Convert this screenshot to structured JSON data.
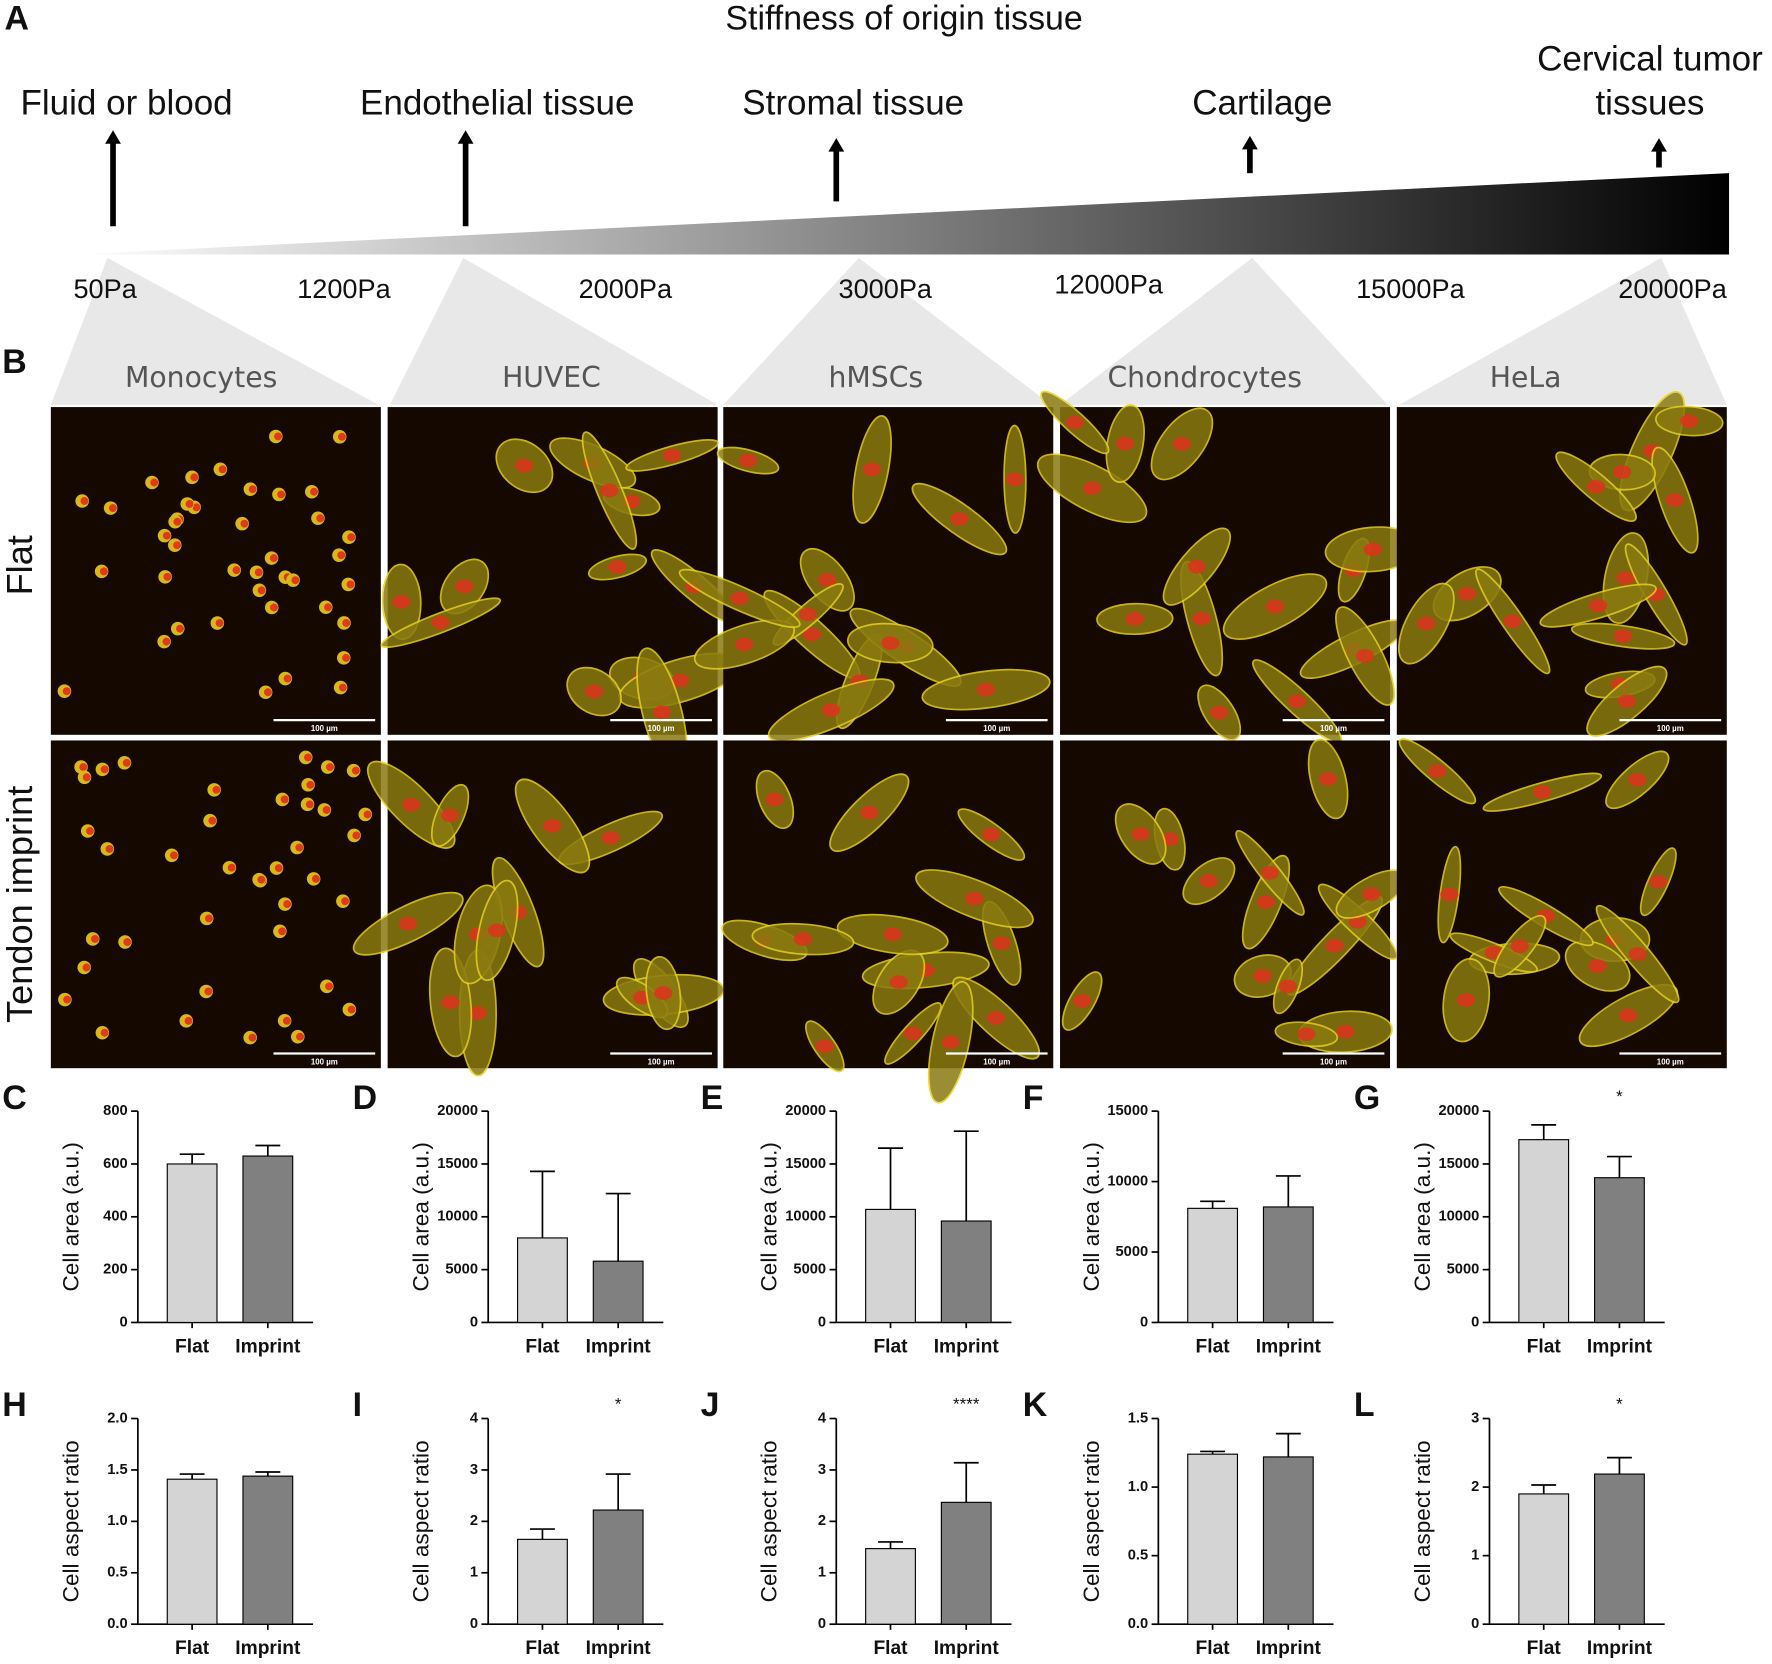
{
  "panel_a": {
    "label": "A",
    "title": "Stiffness of origin tissue",
    "tissues": [
      [
        "Fluid or blood"
      ],
      [
        "Endothelial tissue"
      ],
      [
        "Stromal tissue"
      ],
      [
        "Cartilage"
      ],
      [
        "Cervical tumor",
        "tissues"
      ]
    ],
    "stiffness": [
      "50Pa",
      "1200Pa",
      "2000Pa",
      "3000Pa",
      "12000Pa",
      "15000Pa",
      "20000Pa"
    ]
  },
  "panel_b": {
    "label": "B",
    "cell_types": [
      "Monocytes",
      "HUVEC",
      "hMSCs",
      "Chondrocytes",
      "HeLa"
    ],
    "rows": [
      "Flat",
      "Tendon imprint"
    ],
    "scale_bar": "100 µm"
  },
  "chart_data": [
    {
      "type": "bar",
      "panel": "C",
      "y_label": "Cell area (a.u.)",
      "categories": [
        "Flat",
        "Imprint"
      ],
      "values": [
        600,
        630
      ],
      "errors": [
        37,
        40
      ],
      "colors": [
        "#d4d4d4",
        "#808080"
      ],
      "ylim": [
        0,
        800
      ],
      "yticks": [
        0,
        200,
        400,
        600,
        800
      ]
    },
    {
      "type": "bar",
      "panel": "D",
      "y_label": "Cell area (a.u.)",
      "categories": [
        "Flat",
        "Imprint"
      ],
      "values": [
        8000,
        5800
      ],
      "errors": [
        6300,
        6400
      ],
      "colors": [
        "#d4d4d4",
        "#808080"
      ],
      "ylim": [
        0,
        20000
      ],
      "yticks": [
        0,
        5000,
        10000,
        15000,
        20000
      ]
    },
    {
      "type": "bar",
      "panel": "E",
      "y_label": "Cell area (a.u.)",
      "categories": [
        "Flat",
        "Imprint"
      ],
      "values": [
        10700,
        9600
      ],
      "errors": [
        5800,
        8500
      ],
      "colors": [
        "#d4d4d4",
        "#808080"
      ],
      "ylim": [
        0,
        20000
      ],
      "yticks": [
        0,
        5000,
        10000,
        15000,
        20000
      ]
    },
    {
      "type": "bar",
      "panel": "F",
      "y_label": "Cell area (a.u.)",
      "categories": [
        "Flat",
        "Imprint"
      ],
      "values": [
        8100,
        8200
      ],
      "errors": [
        500,
        2200
      ],
      "colors": [
        "#d4d4d4",
        "#808080"
      ],
      "ylim": [
        0,
        15000
      ],
      "yticks": [
        0,
        5000,
        10000,
        15000
      ]
    },
    {
      "type": "bar",
      "panel": "G",
      "y_label": "Cell area (a.u.)",
      "categories": [
        "Flat",
        "Imprint"
      ],
      "values": [
        17300,
        13700
      ],
      "errors": [
        1400,
        2000
      ],
      "colors": [
        "#d4d4d4",
        "#808080"
      ],
      "ylim": [
        0,
        20000
      ],
      "yticks": [
        0,
        5000,
        10000,
        15000,
        20000
      ],
      "annotation": "*"
    },
    {
      "type": "bar",
      "panel": "H",
      "y_label": "Cell aspect ratio",
      "categories": [
        "Flat",
        "Imprint"
      ],
      "values": [
        1.41,
        1.44
      ],
      "errors": [
        0.05,
        0.04
      ],
      "colors": [
        "#d4d4d4",
        "#808080"
      ],
      "ylim": [
        0,
        2
      ],
      "yticks": [
        {
          "value": 0,
          "label": "0.0"
        },
        0.5,
        {
          "value": 1,
          "label": "1.0"
        },
        1.5,
        {
          "value": 2,
          "label": "2.0"
        }
      ]
    },
    {
      "type": "bar",
      "panel": "I",
      "y_label": "Cell aspect ratio",
      "categories": [
        "Flat",
        "Imprint"
      ],
      "values": [
        1.65,
        2.22
      ],
      "errors": [
        0.2,
        0.7
      ],
      "colors": [
        "#d4d4d4",
        "#808080"
      ],
      "ylim": [
        0,
        4
      ],
      "yticks": [
        0,
        1,
        2,
        3,
        4
      ],
      "annotation": "*"
    },
    {
      "type": "bar",
      "panel": "J",
      "y_label": "Cell aspect ratio",
      "categories": [
        "Flat",
        "Imprint"
      ],
      "values": [
        1.47,
        2.37
      ],
      "errors": [
        0.13,
        0.77
      ],
      "colors": [
        "#d4d4d4",
        "#808080"
      ],
      "ylim": [
        0,
        4
      ],
      "yticks": [
        0,
        1,
        2,
        3,
        4
      ],
      "annotation": "****"
    },
    {
      "type": "bar",
      "panel": "K",
      "y_label": "Cell aspect ratio",
      "categories": [
        "Flat",
        "Imprint"
      ],
      "values": [
        1.24,
        1.22
      ],
      "errors": [
        0.02,
        0.17
      ],
      "colors": [
        "#d4d4d4",
        "#808080"
      ],
      "ylim": [
        0,
        1.5
      ],
      "yticks": [
        {
          "value": 0,
          "label": "0.0"
        },
        0.5,
        {
          "value": 1,
          "label": "1.0"
        },
        1.5
      ]
    },
    {
      "type": "bar",
      "panel": "L",
      "y_label": "Cell aspect ratio",
      "categories": [
        "Flat",
        "Imprint"
      ],
      "values": [
        1.9,
        2.19
      ],
      "errors": [
        0.13,
        0.24
      ],
      "colors": [
        "#d4d4d4",
        "#808080"
      ],
      "ylim": [
        0,
        3
      ],
      "yticks": [
        0,
        1,
        2,
        3
      ],
      "annotation": "*"
    }
  ]
}
